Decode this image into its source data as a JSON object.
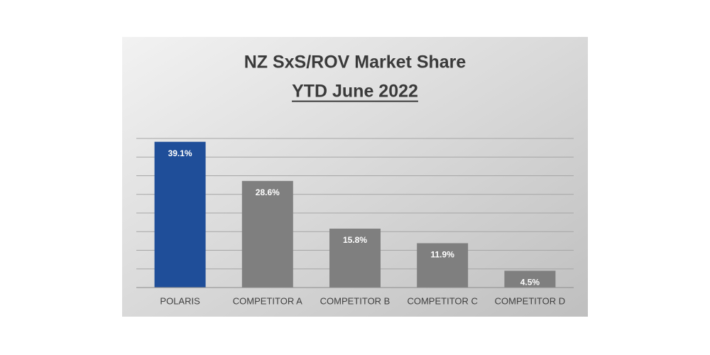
{
  "chart_data": {
    "type": "bar",
    "title": "NZ SxS/ROV Market Share",
    "subtitle": "YTD June 2022",
    "categories": [
      "POLARIS",
      "COMPETITOR A",
      "COMPETITOR B",
      "COMPETITOR C",
      "COMPETITOR D"
    ],
    "values": [
      39.1,
      28.6,
      15.8,
      11.9,
      4.5
    ],
    "value_labels": [
      "39.1%",
      "28.6%",
      "15.8%",
      "11.9%",
      "4.5%"
    ],
    "colors": [
      "#1f4e99",
      "#7f7f7f",
      "#7f7f7f",
      "#7f7f7f",
      "#7f7f7f"
    ],
    "ylim": [
      0,
      40
    ],
    "yticks": [
      0,
      5,
      10,
      15,
      20,
      25,
      30,
      35,
      40
    ],
    "grid": true
  }
}
